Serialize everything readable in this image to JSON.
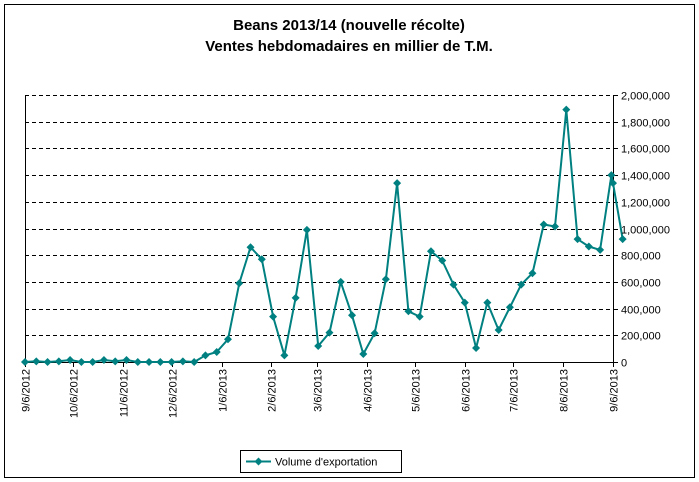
{
  "chart_data": {
    "type": "line",
    "title": "Beans 2013/14 (nouvelle récolte)",
    "subtitle": "Ventes hebdomadaires en millier de T.M.",
    "xlabel": "",
    "ylabel": "",
    "ylim": [
      0,
      2000000
    ],
    "y_ticks": [
      0,
      200000,
      400000,
      600000,
      800000,
      1000000,
      1200000,
      1400000,
      1600000,
      1800000,
      2000000
    ],
    "y_tick_labels": [
      "0",
      "200,000",
      "400,000",
      "600,000",
      "800,000",
      "1,000,000",
      "1,200,000",
      "1,400,000",
      "1,600,000",
      "1,800,000",
      "2,000,000"
    ],
    "x_range": [
      0,
      365
    ],
    "x_ticks": [
      {
        "label": "9/6/2012",
        "day": 0
      },
      {
        "label": "10/6/2012",
        "day": 30
      },
      {
        "label": "11/6/2012",
        "day": 61
      },
      {
        "label": "12/6/2012",
        "day": 91
      },
      {
        "label": "1/6/2013",
        "day": 122
      },
      {
        "label": "2/6/2013",
        "day": 153
      },
      {
        "label": "3/6/2013",
        "day": 181
      },
      {
        "label": "4/6/2013",
        "day": 212
      },
      {
        "label": "5/6/2013",
        "day": 242
      },
      {
        "label": "6/6/2013",
        "day": 273
      },
      {
        "label": "7/6/2013",
        "day": 303
      },
      {
        "label": "8/6/2013",
        "day": 334
      },
      {
        "label": "9/6/2013",
        "day": 365
      }
    ],
    "grid": "horizontal-dashed",
    "legend_position": "bottom-center",
    "series": [
      {
        "name": "Volume d'exportation",
        "color": "#008080",
        "x_days": [
          0,
          7,
          14,
          21,
          28,
          35,
          42,
          49,
          56,
          63,
          70,
          77,
          84,
          91,
          98,
          105,
          112,
          119,
          126,
          133,
          140,
          147,
          154,
          161,
          168,
          175,
          182,
          189,
          196,
          203,
          210,
          217,
          224,
          231,
          238,
          245,
          252,
          259,
          266,
          273,
          280,
          287,
          294,
          301,
          308,
          315,
          322,
          329,
          336,
          343,
          350,
          357,
          364,
          365,
          371
        ],
        "values": [
          0,
          5000,
          0,
          5000,
          15000,
          0,
          0,
          15000,
          5000,
          15000,
          0,
          0,
          0,
          0,
          5000,
          0,
          50000,
          75000,
          170000,
          590000,
          860000,
          770000,
          340000,
          50000,
          480000,
          990000,
          120000,
          220000,
          600000,
          350000,
          60000,
          215000,
          620000,
          1340000,
          380000,
          340000,
          830000,
          760000,
          580000,
          445000,
          105000,
          445000,
          240000,
          410000,
          580000,
          665000,
          1030000,
          1015000,
          1890000,
          920000,
          865000,
          840000,
          1400000,
          1340000,
          920000
        ]
      }
    ]
  }
}
